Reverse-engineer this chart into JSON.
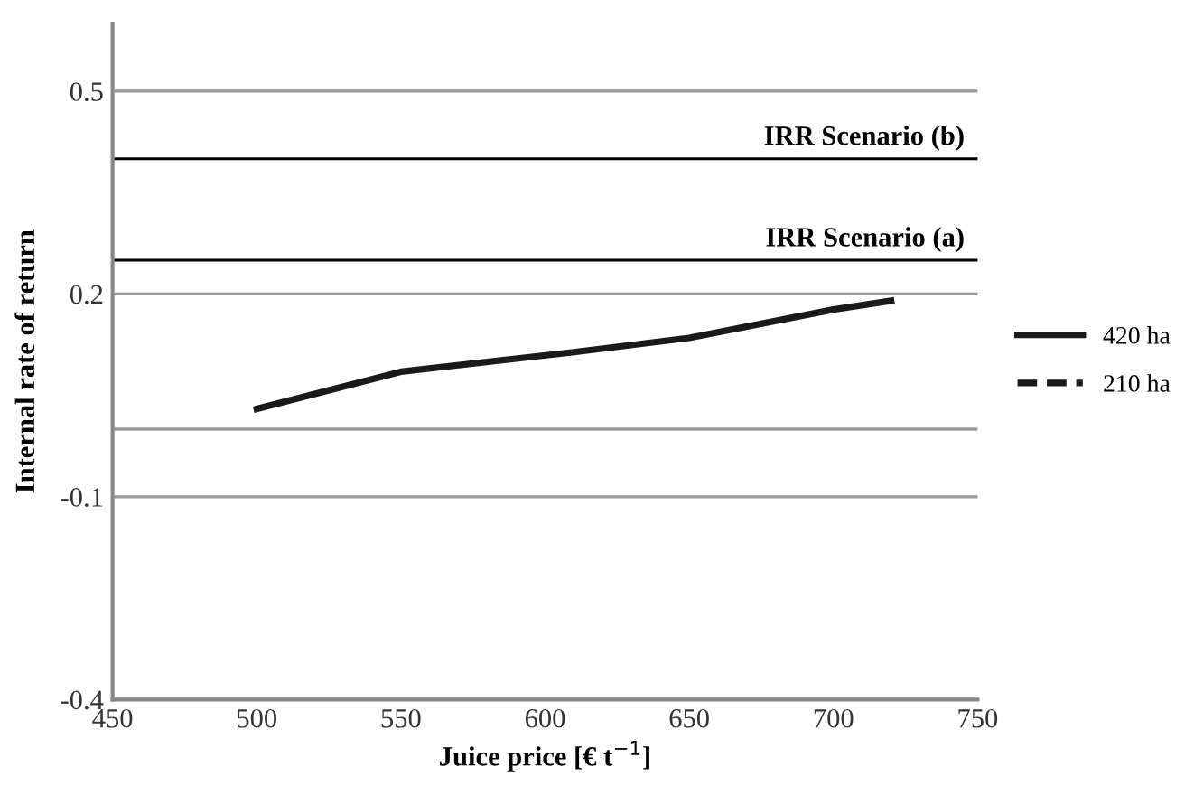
{
  "chart_data": {
    "type": "line",
    "xlabel": "Juice price [€ t$^{−1}$]",
    "ylabel": "Internal rate of return",
    "x": [
      500,
      550,
      610,
      650,
      700,
      720
    ],
    "series": [
      {
        "name": "420 ha",
        "color": "#1a1a1a",
        "line_style": "solid",
        "values": [
          0.03,
          0.085,
          0.114,
          0.135,
          0.177,
          0.19
        ]
      },
      {
        "name": "210 ha",
        "color": "#1a1a1a",
        "line_style": "dashed",
        "values": [
          null,
          null,
          null,
          null,
          null,
          null
        ]
      }
    ],
    "xlim": [
      450,
      750
    ],
    "xticks": [
      450,
      500,
      550,
      600,
      650,
      700,
      750
    ],
    "ylim": [
      -0.4,
      0.6
    ],
    "yticks": [
      -0.4,
      -0.1,
      {
        "value": 0,
        "label": null
      },
      0.2,
      0.5
    ],
    "grid": "y",
    "legend": "right",
    "marker": "none",
    "ref_lines": [
      {
        "axis": "y",
        "value": 0.4,
        "label": "IRR Scenario (b)",
        "color": "#000000",
        "line_style": "solid"
      },
      {
        "axis": "y",
        "value": 0.25,
        "label": "IRR Scenario (a)",
        "color": "#000000",
        "line_style": "solid"
      }
    ]
  }
}
